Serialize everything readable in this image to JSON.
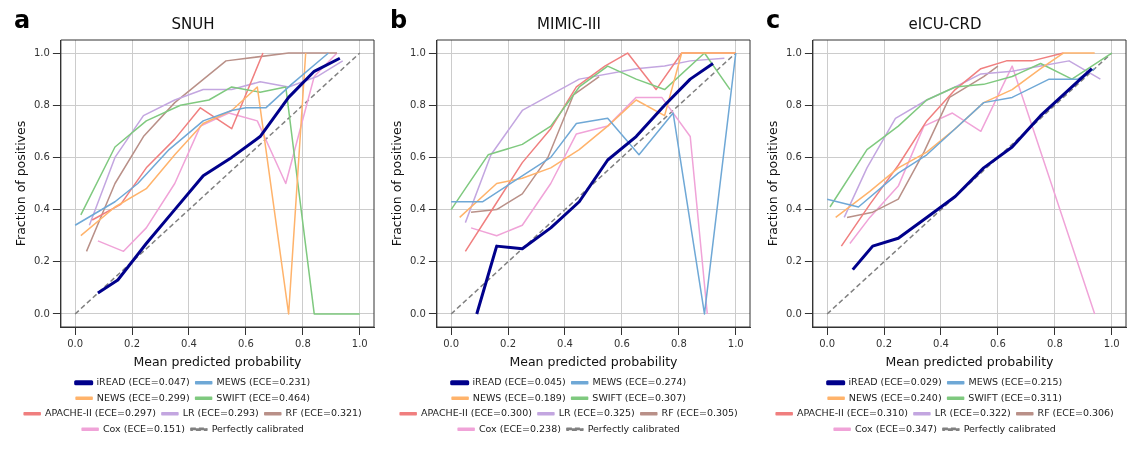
{
  "chart_data": [
    {
      "type": "line",
      "title": "SNUH",
      "annotations": [
        "a"
      ],
      "xlabel": "Mean predicted probability",
      "ylabel": "Fraction of positives",
      "xlim": [
        -0.05,
        1.05
      ],
      "ylim": [
        -0.05,
        1.05
      ],
      "xticks": [
        {
          "value": 0,
          "label": "0.0"
        },
        {
          "value": 0.2,
          "label": "0.2"
        },
        {
          "value": 0.4,
          "label": "0.4"
        },
        {
          "value": 0.6,
          "label": "0.6"
        },
        {
          "value": 0.8,
          "label": "0.8"
        },
        {
          "value": 1,
          "label": "1.0"
        }
      ],
      "yticks": [
        {
          "value": 0,
          "label": "0.0"
        },
        {
          "value": 0.2,
          "label": "0.2"
        },
        {
          "value": 0.4,
          "label": "0.4"
        },
        {
          "value": 0.6,
          "label": "0.6"
        },
        {
          "value": 0.8,
          "label": "0.8"
        },
        {
          "value": 1,
          "label": "1.0"
        }
      ],
      "grid": true,
      "legend": "bottom",
      "marker": "none",
      "series": [
        {
          "name": "iREAD (ECE=0.047)",
          "color": "#00008b",
          "x": [
            0.08,
            0.15,
            0.25,
            0.35,
            0.45,
            0.55,
            0.65,
            0.75,
            0.84,
            0.93
          ],
          "values": [
            0.08,
            0.13,
            0.27,
            0.4,
            0.53,
            0.6,
            0.68,
            0.83,
            0.93,
            0.98
          ]
        },
        {
          "name": "MEWS (ECE=0.231)",
          "color": "#6fa8d6",
          "x": [
            0,
            0.14,
            0.22,
            0.33,
            0.45,
            0.55,
            0.6,
            0.67,
            0.76,
            0.89
          ],
          "values": [
            0.34,
            0.43,
            0.5,
            0.63,
            0.74,
            0.78,
            0.79,
            0.79,
            0.88,
            1
          ]
        },
        {
          "name": "NEWS (ECE=0.299)",
          "color": "#ffb36b",
          "x": [
            0.02,
            0.14,
            0.25,
            0.35,
            0.45,
            0.55,
            0.64,
            0.75,
            0.81
          ],
          "values": [
            0.3,
            0.41,
            0.48,
            0.61,
            0.73,
            0.78,
            0.87,
            0,
            1
          ]
        },
        {
          "name": "SWIFT (ECE=0.464)",
          "color": "#7fc97f",
          "x": [
            0.02,
            0.14,
            0.25,
            0.37,
            0.47,
            0.55,
            0.65,
            0.74,
            0.84,
            1
          ],
          "values": [
            0.38,
            0.64,
            0.74,
            0.8,
            0.82,
            0.87,
            0.85,
            0.87,
            0,
            0
          ]
        },
        {
          "name": "APACHE-II (ECE=0.297)",
          "color": "#f07f7f",
          "x": [
            0.06,
            0.16,
            0.25,
            0.35,
            0.44,
            0.55,
            0.66
          ],
          "values": [
            0.36,
            0.42,
            0.56,
            0.67,
            0.79,
            0.71,
            1
          ]
        },
        {
          "name": "LR (ECE=0.293)",
          "color": "#c3a6e0",
          "x": [
            0.05,
            0.14,
            0.24,
            0.35,
            0.45,
            0.55,
            0.65,
            0.75,
            0.85,
            0.94
          ],
          "values": [
            0.34,
            0.6,
            0.76,
            0.82,
            0.86,
            0.86,
            0.89,
            0.87,
            0.91,
            0.97
          ]
        },
        {
          "name": "RF (ECE=0.321)",
          "color": "#b99088",
          "x": [
            0.04,
            0.14,
            0.24,
            0.35,
            0.53,
            0.75,
            0.92
          ],
          "values": [
            0.24,
            0.5,
            0.68,
            0.81,
            0.97,
            1,
            1
          ]
        },
        {
          "name": "Cox (ECE=0.151)",
          "color": "#f0a3d8",
          "x": [
            0.08,
            0.17,
            0.25,
            0.35,
            0.44,
            0.54,
            0.64,
            0.74,
            0.84,
            0.92
          ],
          "values": [
            0.28,
            0.24,
            0.33,
            0.5,
            0.72,
            0.77,
            0.74,
            0.5,
            0.91,
            1
          ]
        },
        {
          "name": "Perfectly calibrated",
          "color": "#808080",
          "line_style": "dashed",
          "x": [
            0,
            1
          ],
          "values": [
            0,
            1
          ]
        }
      ]
    },
    {
      "type": "line",
      "title": "MIMIC-III",
      "annotations": [
        "b"
      ],
      "xlabel": "Mean predicted probability",
      "ylabel": "Fraction of positives",
      "xlim": [
        -0.05,
        1.05
      ],
      "ylim": [
        -0.05,
        1.05
      ],
      "xticks": [
        {
          "value": 0,
          "label": "0.0"
        },
        {
          "value": 0.2,
          "label": "0.2"
        },
        {
          "value": 0.4,
          "label": "0.4"
        },
        {
          "value": 0.6,
          "label": "0.6"
        },
        {
          "value": 0.8,
          "label": "0.8"
        },
        {
          "value": 1,
          "label": "1.0"
        }
      ],
      "yticks": [
        {
          "value": 0,
          "label": "0.0"
        },
        {
          "value": 0.2,
          "label": "0.2"
        },
        {
          "value": 0.4,
          "label": "0.4"
        },
        {
          "value": 0.6,
          "label": "0.6"
        },
        {
          "value": 0.8,
          "label": "0.8"
        },
        {
          "value": 1,
          "label": "1.0"
        }
      ],
      "grid": true,
      "legend": "bottom",
      "marker": "none",
      "series": [
        {
          "name": "iREAD (ECE=0.045)",
          "color": "#00008b",
          "x": [
            0.09,
            0.16,
            0.25,
            0.35,
            0.45,
            0.55,
            0.65,
            0.75,
            0.84,
            0.92
          ],
          "values": [
            0,
            0.26,
            0.25,
            0.33,
            0.43,
            0.59,
            0.68,
            0.8,
            0.9,
            0.96
          ]
        },
        {
          "name": "MEWS (ECE=0.274)",
          "color": "#6fa8d6",
          "x": [
            0,
            0.11,
            0.35,
            0.44,
            0.55,
            0.66,
            0.78,
            0.89,
            1
          ],
          "values": [
            0.43,
            0.43,
            0.6,
            0.73,
            0.75,
            0.61,
            0.77,
            0,
            1
          ]
        },
        {
          "name": "NEWS (ECE=0.189)",
          "color": "#ffb36b",
          "x": [
            0.03,
            0.16,
            0.25,
            0.35,
            0.45,
            0.55,
            0.65,
            0.75,
            0.81,
            1
          ],
          "values": [
            0.37,
            0.5,
            0.52,
            0.56,
            0.63,
            0.72,
            0.82,
            0.76,
            1,
            1
          ]
        },
        {
          "name": "SWIFT (ECE=0.307)",
          "color": "#7fc97f",
          "x": [
            0,
            0.13,
            0.25,
            0.35,
            0.45,
            0.55,
            0.65,
            0.75,
            0.89,
            0.98
          ],
          "values": [
            0.4,
            0.61,
            0.65,
            0.72,
            0.87,
            0.95,
            0.9,
            0.86,
            1,
            0.86
          ]
        },
        {
          "name": "APACHE-II (ECE=0.300)",
          "color": "#f07f7f",
          "x": [
            0.05,
            0.15,
            0.25,
            0.35,
            0.44,
            0.54,
            0.62,
            0.72,
            0.81,
            1
          ],
          "values": [
            0.24,
            0.41,
            0.58,
            0.71,
            0.87,
            0.95,
            1,
            0.86,
            1,
            1
          ]
        },
        {
          "name": "LR (ECE=0.325)",
          "color": "#c3a6e0",
          "x": [
            0.05,
            0.14,
            0.25,
            0.45,
            0.65,
            0.75,
            0.84,
            0.96
          ],
          "values": [
            0.35,
            0.61,
            0.78,
            0.9,
            0.94,
            0.95,
            0.97,
            0.98
          ]
        },
        {
          "name": "RF (ECE=0.305)",
          "color": "#b99088",
          "x": [
            0.07,
            0.16,
            0.25,
            0.34,
            0.43,
            0.52
          ],
          "values": [
            0.39,
            0.4,
            0.46,
            0.6,
            0.84,
            0.91
          ]
        },
        {
          "name": "Cox (ECE=0.238)",
          "color": "#f0a3d8",
          "x": [
            0.07,
            0.16,
            0.25,
            0.35,
            0.44,
            0.55,
            0.65,
            0.74,
            0.84,
            0.9
          ],
          "values": [
            0.33,
            0.3,
            0.34,
            0.5,
            0.69,
            0.72,
            0.83,
            0.83,
            0.68,
            0
          ]
        },
        {
          "name": "Perfectly calibrated",
          "color": "#808080",
          "line_style": "dashed",
          "x": [
            0,
            1
          ],
          "values": [
            0,
            1
          ]
        }
      ]
    },
    {
      "type": "line",
      "title": "eICU-CRD",
      "annotations": [
        "c"
      ],
      "xlabel": "Mean predicted probability",
      "ylabel": "Fraction of positives",
      "xlim": [
        -0.05,
        1.05
      ],
      "ylim": [
        -0.05,
        1.05
      ],
      "xticks": [
        {
          "value": 0,
          "label": "0.0"
        },
        {
          "value": 0.2,
          "label": "0.2"
        },
        {
          "value": 0.4,
          "label": "0.4"
        },
        {
          "value": 0.6,
          "label": "0.6"
        },
        {
          "value": 0.8,
          "label": "0.8"
        },
        {
          "value": 1,
          "label": "1.0"
        }
      ],
      "yticks": [
        {
          "value": 0,
          "label": "0.0"
        },
        {
          "value": 0.2,
          "label": "0.2"
        },
        {
          "value": 0.4,
          "label": "0.4"
        },
        {
          "value": 0.6,
          "label": "0.6"
        },
        {
          "value": 0.8,
          "label": "0.8"
        },
        {
          "value": 1,
          "label": "1.0"
        }
      ],
      "grid": true,
      "legend": "bottom",
      "marker": "none",
      "series": [
        {
          "name": "iREAD (ECE=0.029)",
          "color": "#00008b",
          "x": [
            0.09,
            0.16,
            0.25,
            0.35,
            0.45,
            0.55,
            0.65,
            0.75,
            0.84,
            0.93
          ],
          "values": [
            0.17,
            0.26,
            0.29,
            0.37,
            0.45,
            0.56,
            0.64,
            0.76,
            0.85,
            0.94
          ]
        },
        {
          "name": "MEWS (ECE=0.215)",
          "color": "#6fa8d6",
          "x": [
            0,
            0.11,
            0.25,
            0.35,
            0.45,
            0.55,
            0.65,
            0.78,
            0.88,
            0.94
          ],
          "values": [
            0.44,
            0.41,
            0.54,
            0.61,
            0.71,
            0.81,
            0.83,
            0.9,
            0.9,
            0.94
          ]
        },
        {
          "name": "NEWS (ECE=0.240)",
          "color": "#ffb36b",
          "x": [
            0.03,
            0.15,
            0.25,
            0.35,
            0.45,
            0.55,
            0.65,
            0.75,
            0.83,
            0.94
          ],
          "values": [
            0.37,
            0.47,
            0.56,
            0.62,
            0.71,
            0.81,
            0.86,
            0.94,
            1,
            1
          ]
        },
        {
          "name": "SWIFT (ECE=0.311)",
          "color": "#7fc97f",
          "x": [
            0.01,
            0.14,
            0.25,
            0.35,
            0.45,
            0.55,
            0.65,
            0.75,
            0.86,
            1
          ],
          "values": [
            0.41,
            0.63,
            0.72,
            0.82,
            0.87,
            0.88,
            0.91,
            0.96,
            0.9,
            1
          ]
        },
        {
          "name": "APACHE-II (ECE=0.310)",
          "color": "#f07f7f",
          "x": [
            0.05,
            0.15,
            0.25,
            0.35,
            0.45,
            0.54,
            0.63,
            0.72,
            0.83
          ],
          "values": [
            0.26,
            0.42,
            0.57,
            0.74,
            0.86,
            0.94,
            0.97,
            0.97,
            1
          ]
        },
        {
          "name": "LR (ECE=0.322)",
          "color": "#c3a6e0",
          "x": [
            0.06,
            0.14,
            0.24,
            0.35,
            0.45,
            0.54,
            0.65,
            0.75,
            0.85,
            0.96
          ],
          "values": [
            0.37,
            0.56,
            0.75,
            0.82,
            0.87,
            0.92,
            0.93,
            0.95,
            0.97,
            0.9
          ]
        },
        {
          "name": "RF (ECE=0.306)",
          "color": "#b99088",
          "x": [
            0.07,
            0.16,
            0.25,
            0.34,
            0.43,
            0.55,
            0.6
          ],
          "values": [
            0.37,
            0.39,
            0.44,
            0.62,
            0.83,
            0.91,
            0.95
          ]
        },
        {
          "name": "Cox (ECE=0.347)",
          "color": "#f0a3d8",
          "x": [
            0.08,
            0.15,
            0.25,
            0.34,
            0.44,
            0.54,
            0.65,
            0.94
          ],
          "values": [
            0.27,
            0.37,
            0.49,
            0.72,
            0.77,
            0.7,
            0.95,
            0
          ]
        },
        {
          "name": "Perfectly calibrated",
          "color": "#808080",
          "line_style": "dashed",
          "x": [
            0,
            1
          ],
          "values": [
            0,
            1
          ]
        }
      ]
    }
  ]
}
